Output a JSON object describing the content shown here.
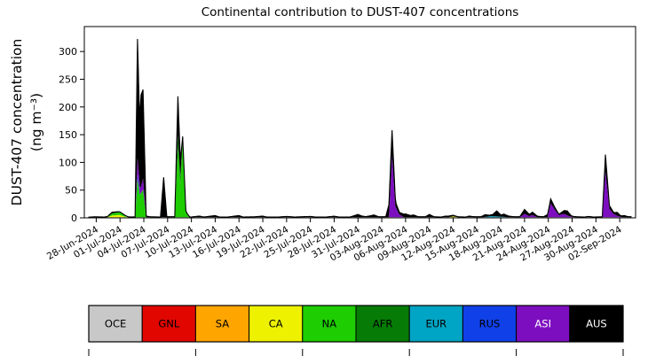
{
  "chart_data": {
    "type": "area",
    "stacked": true,
    "title": "Continental contribution to DUST-407 concentrations",
    "ylabel": "DUST-407 concentration (ng m⁻³)",
    "ylabel_lines": [
      "DUST-407 concentration",
      "(ng m⁻³)"
    ],
    "xlabel": "",
    "grid": false,
    "legend_position": "bottom",
    "ylim": [
      0,
      345
    ],
    "yticks": [
      0,
      50,
      100,
      150,
      200,
      250,
      300
    ],
    "x_day0": "27-Jun-2024",
    "x_range_days": [
      -0.5,
      69
    ],
    "x_tick_start_day": 1,
    "x_tick_step_days": 3,
    "x_tick_labels": [
      "28-Jun-2024",
      "01-Jul-2024",
      "04-Jul-2024",
      "07-Jul-2024",
      "10-Jul-2024",
      "13-Jul-2024",
      "16-Jul-2024",
      "19-Jul-2024",
      "22-Jul-2024",
      "25-Jul-2024",
      "28-Jul-2024",
      "31-Jul-2024",
      "03-Aug-2024",
      "06-Aug-2024",
      "09-Aug-2024",
      "12-Aug-2024",
      "15-Aug-2024",
      "18-Aug-2024",
      "21-Aug-2024",
      "24-Aug-2024",
      "27-Aug-2024",
      "30-Aug-2024",
      "02-Sep-2024"
    ],
    "line_color": "#000000",
    "legend": [
      {
        "label": "OCE",
        "color": "#c8c8c8",
        "text": "#000000"
      },
      {
        "label": "GNL",
        "color": "#e10600",
        "text": "#000000"
      },
      {
        "label": "SA",
        "color": "#ffa500",
        "text": "#000000"
      },
      {
        "label": "CA",
        "color": "#eef200",
        "text": "#000000"
      },
      {
        "label": "NA",
        "color": "#1ecd02",
        "text": "#000000"
      },
      {
        "label": "AFR",
        "color": "#067c06",
        "text": "#000000"
      },
      {
        "label": "EUR",
        "color": "#00a4c4",
        "text": "#000000"
      },
      {
        "label": "RUS",
        "color": "#1040e8",
        "text": "#000000"
      },
      {
        "label": "ASI",
        "color": "#7d0ec0",
        "text": "#ffffff"
      },
      {
        "label": "AUS",
        "color": "#000000",
        "text": "#ffffff"
      }
    ],
    "series": [
      {
        "name": "OCE",
        "points": [
          [
            0,
            1.2
          ],
          [
            68.5,
            1.2
          ]
        ]
      },
      {
        "name": "CA",
        "points": [
          [
            2.4,
            0
          ],
          [
            3,
            3
          ],
          [
            3.9,
            4
          ],
          [
            4.6,
            1
          ],
          [
            5.2,
            0
          ],
          [
            45.4,
            0
          ],
          [
            46,
            1.5
          ],
          [
            46.6,
            0
          ]
        ]
      },
      {
        "name": "NA",
        "points": [
          [
            2.4,
            0
          ],
          [
            3,
            4
          ],
          [
            4,
            5
          ],
          [
            5,
            0
          ],
          [
            5.9,
            0
          ],
          [
            6.2,
            70
          ],
          [
            6.5,
            40
          ],
          [
            6.9,
            50
          ],
          [
            7.3,
            0
          ],
          [
            10.9,
            0
          ],
          [
            11.3,
            125
          ],
          [
            11.6,
            60
          ],
          [
            11.9,
            135
          ],
          [
            12.3,
            8
          ],
          [
            12.8,
            0
          ]
        ]
      },
      {
        "name": "AFR",
        "points": [
          [
            10.9,
            0
          ],
          [
            11.3,
            25
          ],
          [
            11.7,
            10
          ],
          [
            12,
            8
          ],
          [
            12.5,
            0
          ]
        ]
      },
      {
        "name": "EUR",
        "points": [
          [
            49.8,
            0
          ],
          [
            50.8,
            2
          ],
          [
            52,
            1
          ],
          [
            53,
            0
          ]
        ]
      },
      {
        "name": "RUS",
        "points": [
          [
            6.0,
            0
          ],
          [
            6.25,
            8
          ],
          [
            6.6,
            0
          ]
        ]
      },
      {
        "name": "ASI",
        "points": [
          [
            5.9,
            0
          ],
          [
            6.2,
            30
          ],
          [
            6.6,
            10
          ],
          [
            6.9,
            20
          ],
          [
            7.3,
            0
          ],
          [
            37.9,
            0
          ],
          [
            38.3,
            112
          ],
          [
            38.7,
            20
          ],
          [
            39.2,
            5
          ],
          [
            39.8,
            0
          ],
          [
            54.4,
            0
          ],
          [
            55,
            6
          ],
          [
            55.6,
            2
          ],
          [
            56,
            4
          ],
          [
            56.6,
            0
          ],
          [
            57.9,
            0
          ],
          [
            58.3,
            25
          ],
          [
            58.8,
            14
          ],
          [
            59.3,
            4
          ],
          [
            60,
            6
          ],
          [
            60.6,
            2
          ],
          [
            61.2,
            0
          ],
          [
            64.8,
            0
          ],
          [
            65.2,
            83
          ],
          [
            65.7,
            15
          ],
          [
            66.2,
            6
          ],
          [
            66.8,
            2
          ],
          [
            67.3,
            0
          ]
        ]
      },
      {
        "name": "AUS",
        "points": [
          [
            0,
            0
          ],
          [
            0.8,
            0.8
          ],
          [
            2,
            0.4
          ],
          [
            3,
            2
          ],
          [
            4,
            1
          ],
          [
            5,
            0.5
          ],
          [
            5.9,
            0.5
          ],
          [
            6.2,
            215
          ],
          [
            6.45,
            120
          ],
          [
            6.65,
            165
          ],
          [
            6.9,
            160
          ],
          [
            7.3,
            2
          ],
          [
            7.8,
            0.8
          ],
          [
            9.1,
            0.4
          ],
          [
            9.5,
            72
          ],
          [
            9.9,
            0.8
          ],
          [
            10.9,
            0.8
          ],
          [
            11.3,
            68
          ],
          [
            11.6,
            30
          ],
          [
            11.9,
            2
          ],
          [
            12.4,
            0.8
          ],
          [
            13,
            0.4
          ],
          [
            14,
            2
          ],
          [
            14.6,
            0.4
          ],
          [
            16,
            3
          ],
          [
            16.5,
            0.4
          ],
          [
            17.6,
            0.4
          ],
          [
            19,
            3
          ],
          [
            19.5,
            0.4
          ],
          [
            21,
            0.8
          ],
          [
            22,
            2
          ],
          [
            22.5,
            0.4
          ],
          [
            24,
            0.4
          ],
          [
            25,
            1.4
          ],
          [
            26,
            0.4
          ],
          [
            28,
            1.4
          ],
          [
            28.6,
            0.4
          ],
          [
            30,
            0.4
          ],
          [
            31,
            1.8
          ],
          [
            31.6,
            0.4
          ],
          [
            33,
            0.4
          ],
          [
            34,
            5
          ],
          [
            34.5,
            2
          ],
          [
            35,
            1
          ],
          [
            36,
            4
          ],
          [
            36.6,
            0.8
          ],
          [
            37.5,
            0.8
          ],
          [
            38.3,
            45
          ],
          [
            38.8,
            8
          ],
          [
            39.3,
            4
          ],
          [
            40,
            6
          ],
          [
            40.6,
            3
          ],
          [
            41,
            4
          ],
          [
            41.6,
            0.8
          ],
          [
            42.5,
            0.8
          ],
          [
            43,
            5
          ],
          [
            43.6,
            0.8
          ],
          [
            44.5,
            0.4
          ],
          [
            45,
            2
          ],
          [
            46,
            2
          ],
          [
            46.6,
            0.8
          ],
          [
            47.6,
            0.4
          ],
          [
            48,
            2
          ],
          [
            48.7,
            0.8
          ],
          [
            49.5,
            0.8
          ],
          [
            50,
            4
          ],
          [
            50.6,
            2
          ],
          [
            51,
            3
          ],
          [
            51.5,
            10
          ],
          [
            52,
            3
          ],
          [
            52.4,
            5
          ],
          [
            53,
            2
          ],
          [
            53.7,
            0.8
          ],
          [
            54.4,
            0.8
          ],
          [
            55,
            8
          ],
          [
            55.6,
            3
          ],
          [
            56,
            5
          ],
          [
            56.7,
            1.6
          ],
          [
            57.4,
            0.8
          ],
          [
            58.3,
            8
          ],
          [
            58.8,
            4
          ],
          [
            59.4,
            1.6
          ],
          [
            60,
            6
          ],
          [
            60.4,
            8
          ],
          [
            60.9,
            1.6
          ],
          [
            61.6,
            0.8
          ],
          [
            62.6,
            0.4
          ],
          [
            63,
            1.4
          ],
          [
            63.7,
            0.4
          ],
          [
            64.8,
            0.8
          ],
          [
            65.2,
            30
          ],
          [
            65.7,
            6
          ],
          [
            66.3,
            3
          ],
          [
            66.7,
            6
          ],
          [
            67.1,
            2
          ],
          [
            67.6,
            3
          ],
          [
            68,
            1
          ],
          [
            68.5,
            0.8
          ]
        ]
      }
    ]
  }
}
